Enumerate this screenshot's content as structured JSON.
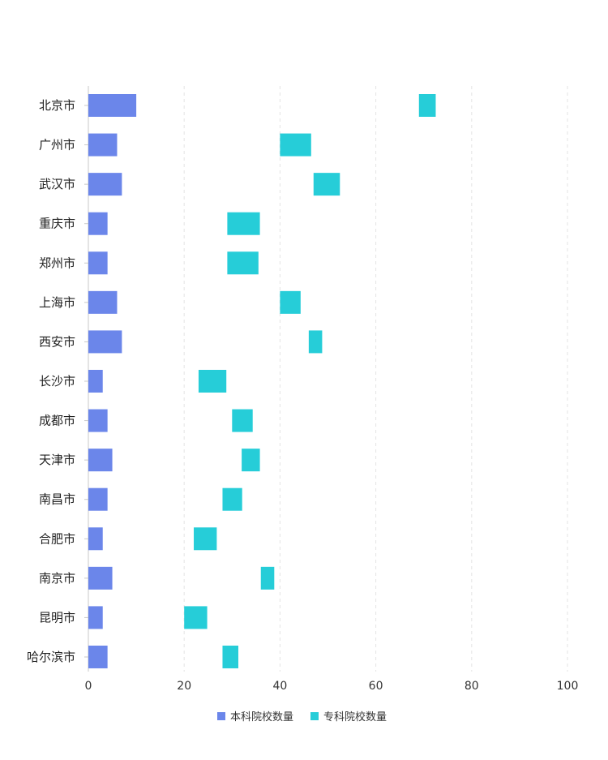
{
  "chart_data": {
    "type": "bar",
    "orientation": "horizontal",
    "categories": [
      "北京市",
      "广州市",
      "武汉市",
      "重庆市",
      "郑州市",
      "上海市",
      "西安市",
      "长沙市",
      "成都市",
      "天津市",
      "南昌市",
      "合肥市",
      "南京市",
      "昆明市",
      "哈尔滨市"
    ],
    "series": [
      {
        "name": "本科院校数量",
        "color": "#6b86ea",
        "values": [
          10,
          6,
          7,
          4,
          4,
          6,
          7,
          3,
          4,
          5,
          4,
          3,
          5,
          3,
          4
        ]
      },
      {
        "name": "专科院校数量",
        "color": "#26cdd8",
        "ranges": [
          [
            69,
            72.5
          ],
          [
            40,
            46.5
          ],
          [
            47,
            52.5
          ],
          [
            29,
            35.8
          ],
          [
            29,
            35.5
          ],
          [
            40,
            44.3
          ],
          [
            46,
            48.8
          ],
          [
            23,
            28.8
          ],
          [
            30,
            34.3
          ],
          [
            32,
            35.8
          ],
          [
            28,
            32.1
          ],
          [
            22,
            26.8
          ],
          [
            36,
            38.8
          ],
          [
            20,
            24.8
          ],
          [
            28,
            31.3
          ]
        ]
      }
    ],
    "xlim": [
      0,
      100
    ],
    "xticks": [
      0,
      20,
      40,
      60,
      80,
      100
    ],
    "xlabel": "",
    "ylabel": "",
    "grid": "vertical dashed",
    "legend_position": "bottom"
  }
}
